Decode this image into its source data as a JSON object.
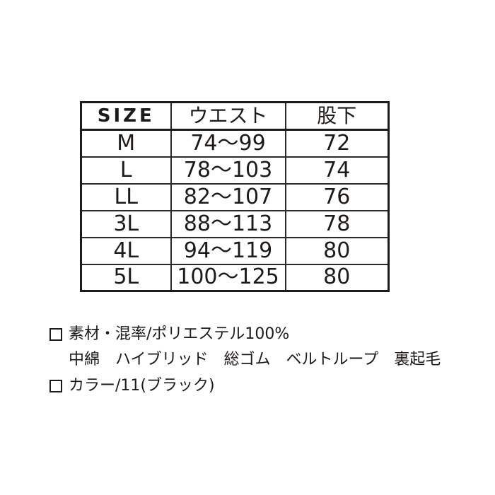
{
  "size_table": {
    "headers": [
      "SIZE",
      "ウエスト",
      "股下"
    ],
    "rows": [
      {
        "size": "M",
        "waist": "74〜99",
        "inseam": "72"
      },
      {
        "size": "L",
        "waist": "78〜103",
        "inseam": "74"
      },
      {
        "size": "LL",
        "waist": "82〜107",
        "inseam": "76"
      },
      {
        "size": "3L",
        "waist": "88〜113",
        "inseam": "78"
      },
      {
        "size": "4L",
        "waist": "94〜119",
        "inseam": "80"
      },
      {
        "size": "5L",
        "waist": "100〜125",
        "inseam": "80"
      }
    ]
  },
  "notes": {
    "material": "素材・混率/ポリエステル100%",
    "features": "中綿　ハイブリッド　総ゴム　ベルトループ　裏起毛",
    "color": "カラー/11(ブラック)"
  },
  "colors": {
    "text": "#1e1a17",
    "table_border": "#1e1a17",
    "background": "#ffffff"
  }
}
